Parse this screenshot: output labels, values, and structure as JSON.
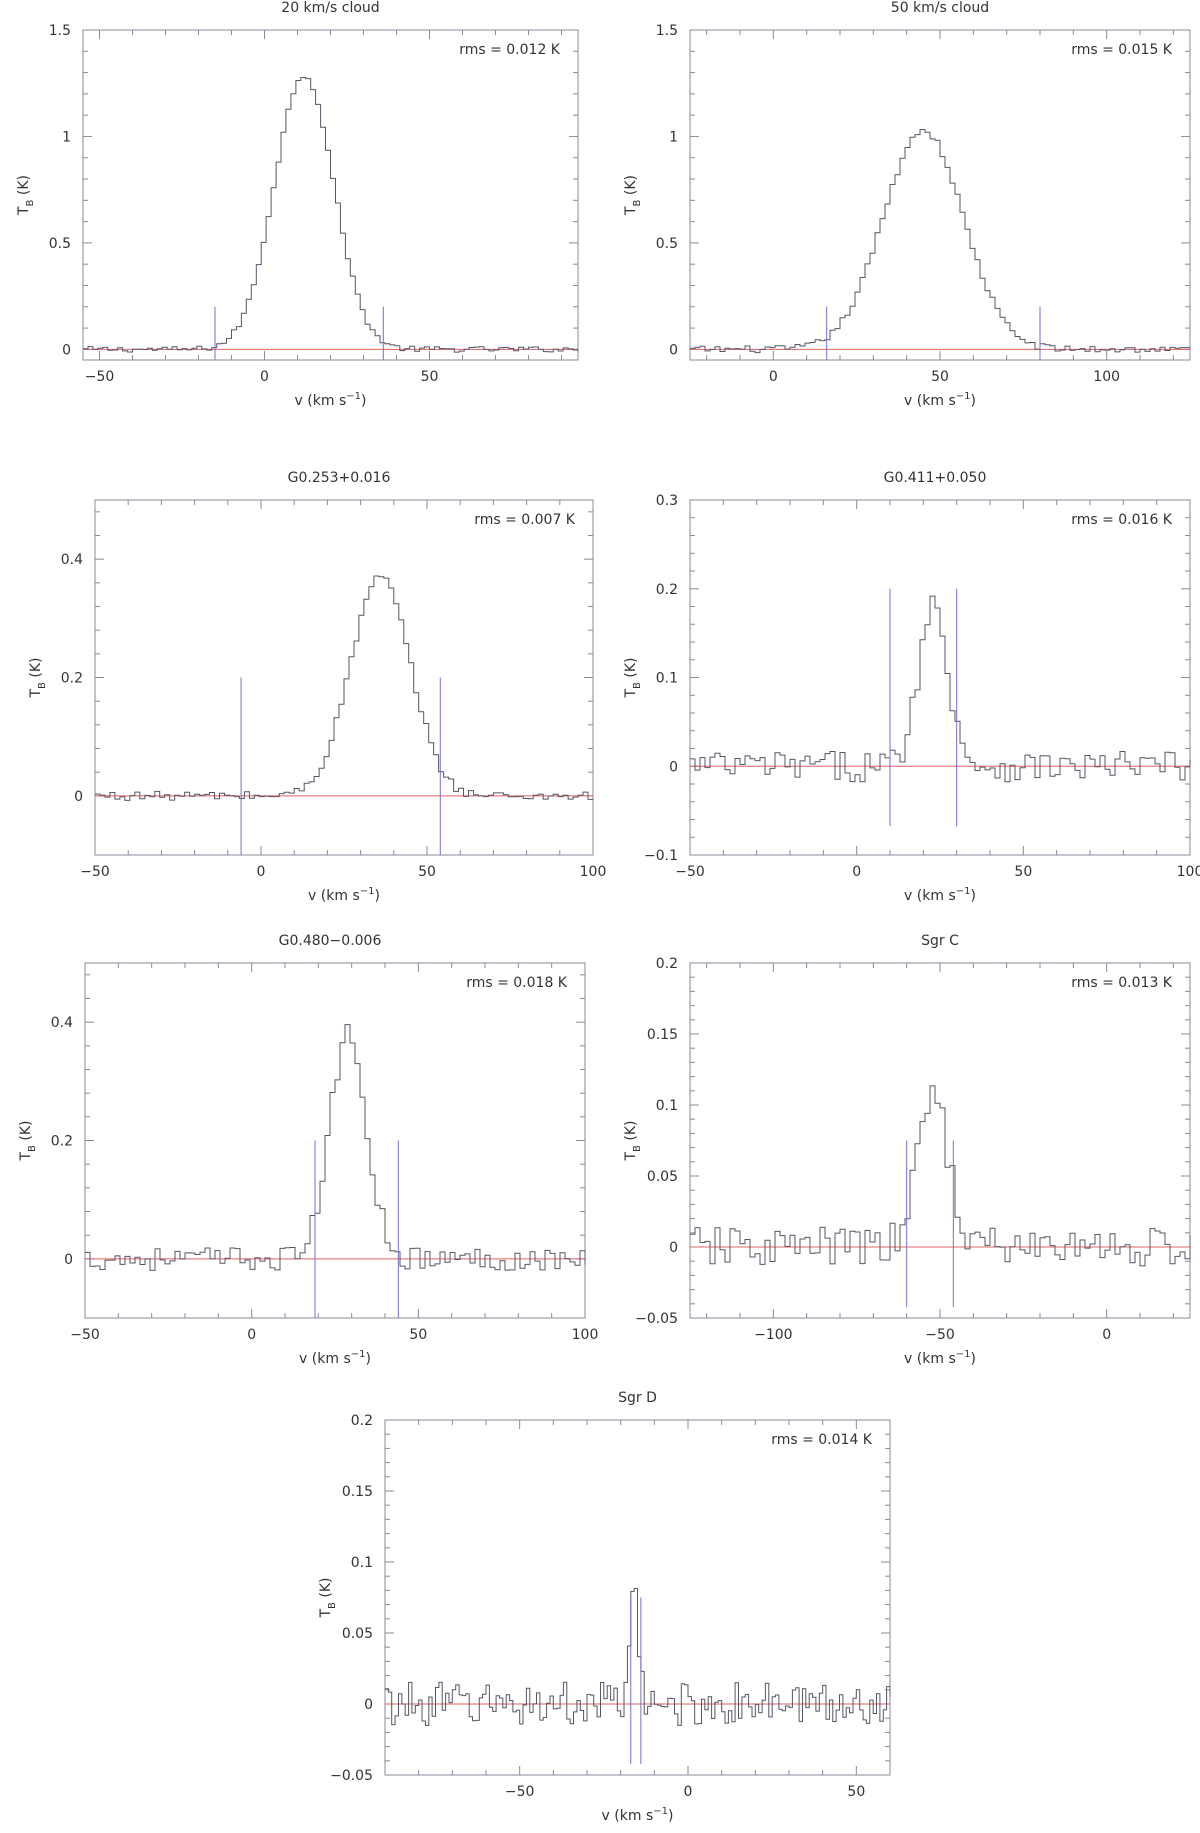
{
  "chart_data": [
    {
      "type": "line",
      "title": "20 km/s cloud",
      "annotation": "rms = 0.012 K",
      "xlabel": "v (km s",
      "xlabel_sup": "−1",
      "xlabel_end": ")",
      "ylabel": "T",
      "ylabel_sub": "B",
      "ylabel_end": " (K)",
      "xlim": [
        -55,
        95
      ],
      "ylim": [
        -0.05,
        1.5
      ],
      "xticks": [
        -50,
        0,
        50
      ],
      "yticks": [
        0,
        0.5,
        1,
        1.5
      ],
      "peak": {
        "v": 12,
        "t": 1.29,
        "width": 9
      },
      "noise": 0.012,
      "window": [
        -15,
        36
      ],
      "marker_height": 0.2,
      "step": 1.5
    },
    {
      "type": "line",
      "title": "50 km/s cloud",
      "annotation": "rms = 0.015 K",
      "xlabel": "v (km s",
      "xlabel_sup": "−1",
      "xlabel_end": ")",
      "ylabel": "T",
      "ylabel_sub": "B",
      "ylabel_end": " (K)",
      "xlim": [
        -25,
        125
      ],
      "ylim": [
        -0.05,
        1.5
      ],
      "xticks": [
        0,
        50,
        100
      ],
      "yticks": [
        0,
        0.5,
        1,
        1.5
      ],
      "peak": {
        "v": 45,
        "t": 1.03,
        "width": 12
      },
      "noise": 0.015,
      "window": [
        16,
        80
      ],
      "marker_height": 0.2,
      "step": 1.5
    },
    {
      "type": "line",
      "title": "G0.253+0.016",
      "annotation": "rms = 0.007 K",
      "xlabel": "v (km s",
      "xlabel_sup": "−1",
      "xlabel_end": ")",
      "ylabel": "T",
      "ylabel_sub": "B",
      "ylabel_end": " (K)",
      "xlim": [
        -50,
        100
      ],
      "ylim": [
        -0.1,
        0.5
      ],
      "xticks": [
        -50,
        0,
        50,
        100
      ],
      "yticks": [
        0,
        0.2,
        0.4
      ],
      "peak": {
        "v": 36,
        "t": 0.37,
        "width": 9
      },
      "noise": 0.007,
      "window": [
        -6,
        54
      ],
      "marker_height": 0.2,
      "step": 1.5
    },
    {
      "type": "line",
      "title": "G0.411+0.050",
      "annotation": "rms = 0.016 K",
      "xlabel": "v (km s",
      "xlabel_sup": "−1",
      "xlabel_end": ")",
      "ylabel": "T",
      "ylabel_sub": "B",
      "ylabel_end": " (K)",
      "xlim": [
        -50,
        100
      ],
      "ylim": [
        -0.1,
        0.3
      ],
      "xticks": [
        -50,
        0,
        50,
        100
      ],
      "yticks": [
        -0.1,
        0,
        0.1,
        0.2,
        0.3
      ],
      "peak": {
        "v": 23,
        "t": 0.18,
        "width": 4.5
      },
      "noise": 0.016,
      "window": [
        10,
        30
      ],
      "marker_height": 0.2,
      "step": 1.5
    },
    {
      "type": "line",
      "title": "G0.480−0.006",
      "annotation": "rms = 0.018 K",
      "xlabel": "v (km s",
      "xlabel_sup": "−1",
      "xlabel_end": ")",
      "ylabel": "T",
      "ylabel_sub": "B",
      "ylabel_end": " (K)",
      "xlim": [
        -50,
        100
      ],
      "ylim": [
        -0.1,
        0.5
      ],
      "xticks": [
        -50,
        0,
        50,
        100
      ],
      "yticks": [
        0,
        0.2,
        0.4
      ],
      "peak": {
        "v": 29,
        "t": 0.38,
        "width": 5.5
      },
      "noise": 0.018,
      "window": [
        19,
        44
      ],
      "marker_height": 0.2,
      "step": 1.5
    },
    {
      "type": "line",
      "title": "Sgr C",
      "annotation": "rms = 0.013 K",
      "xlabel": "v (km s",
      "xlabel_sup": "−1",
      "xlabel_end": ")",
      "ylabel": "T",
      "ylabel_sub": "B",
      "ylabel_end": " (K)",
      "xlim": [
        -125,
        25
      ],
      "ylim": [
        -0.05,
        0.2
      ],
      "xticks": [
        -100,
        -50,
        0
      ],
      "yticks": [
        -0.05,
        0,
        0.05,
        0.1,
        0.15,
        0.2
      ],
      "peak": {
        "v": -52,
        "t": 0.11,
        "width": 4.5
      },
      "noise": 0.013,
      "window": [
        -60,
        -46
      ],
      "marker_height": 0.075,
      "step": 1.5
    },
    {
      "type": "line",
      "title": "Sgr D",
      "annotation": "rms = 0.014 K",
      "xlabel": "v (km s",
      "xlabel_sup": "−1",
      "xlabel_end": ")",
      "ylabel": "T",
      "ylabel_sub": "B",
      "ylabel_end": " (K)",
      "xlim": [
        -90,
        60
      ],
      "ylim": [
        -0.05,
        0.2
      ],
      "xticks": [
        -50,
        0,
        50
      ],
      "yticks": [
        -0.05,
        0,
        0.05,
        0.1,
        0.15,
        0.2
      ],
      "peak": {
        "v": -16,
        "t": 0.075,
        "width": 1.2
      },
      "noise": 0.014,
      "window": [
        -17,
        -14
      ],
      "marker_height": 0.075,
      "step": 1
    }
  ]
}
